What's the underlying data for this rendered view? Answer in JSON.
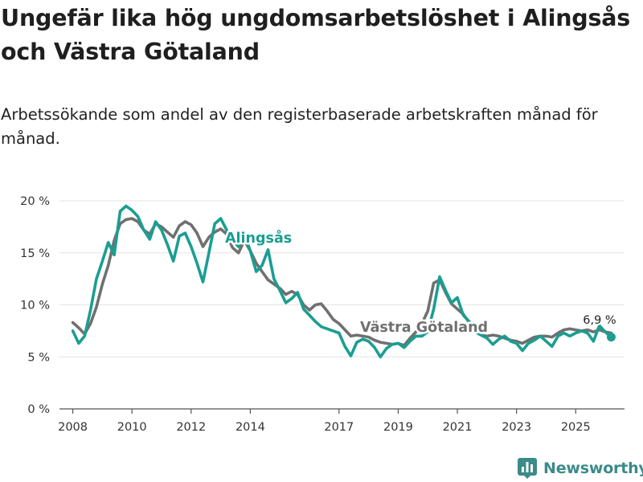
{
  "title": "Ungefär lika hög ungdomsarbetslöshet i Alingsås och Västra Götaland",
  "subtitle": "Arbetssökande som andel av den registerbaserade arbetskraften månad för månad.",
  "brand": {
    "name": "Newsworthy",
    "logo_icon": "bar-chart-icon"
  },
  "chart_data": {
    "type": "line",
    "title": "Ungefär lika hög ungdomsarbetslöshet i Alingsås och Västra Götaland",
    "xlabel": "",
    "ylabel": "",
    "xlim": [
      2007.55,
      2026.65
    ],
    "ylim": [
      0,
      20
    ],
    "grid": true,
    "y_ticks": [
      0,
      5,
      10,
      15,
      20
    ],
    "y_tick_labels": [
      "0 %",
      "5 %",
      "10 %",
      "15 %",
      "20 %"
    ],
    "x_ticks": [
      2008,
      2010,
      2012,
      2014,
      2017,
      2019,
      2021,
      2023,
      2025
    ],
    "x_tick_labels": [
      "2008",
      "2010",
      "2012",
      "2014",
      "2017",
      "2019",
      "2021",
      "2023",
      "2025"
    ],
    "end_label": "6,9 %",
    "series": [
      {
        "name": "Västra Götaland",
        "color": "#707070",
        "x": [
          2008.0,
          2008.2,
          2008.4,
          2008.6,
          2008.8,
          2009.0,
          2009.2,
          2009.4,
          2009.6,
          2009.8,
          2010.0,
          2010.2,
          2010.4,
          2010.6,
          2010.8,
          2011.0,
          2011.2,
          2011.4,
          2011.6,
          2011.8,
          2012.0,
          2012.2,
          2012.4,
          2012.6,
          2012.8,
          2013.0,
          2013.2,
          2013.4,
          2013.6,
          2013.8,
          2014.0,
          2014.2,
          2014.4,
          2014.6,
          2014.8,
          2015.0,
          2015.2,
          2015.4,
          2015.6,
          2015.8,
          2016.0,
          2016.2,
          2016.4,
          2016.6,
          2016.8,
          2017.0,
          2017.2,
          2017.4,
          2017.6,
          2017.8,
          2018.0,
          2018.2,
          2018.4,
          2018.6,
          2018.8,
          2019.0,
          2019.2,
          2019.4,
          2019.6,
          2019.8,
          2020.0,
          2020.2,
          2020.4,
          2020.6,
          2020.8,
          2021.0,
          2021.2,
          2021.4,
          2021.6,
          2021.8,
          2022.0,
          2022.2,
          2022.4,
          2022.6,
          2022.8,
          2023.0,
          2023.2,
          2023.4,
          2023.6,
          2023.8,
          2024.0,
          2024.2,
          2024.4,
          2024.6,
          2024.8,
          2025.0,
          2025.2,
          2025.4,
          2025.6,
          2025.8,
          2026.0,
          2026.2
        ],
        "y": [
          8.3,
          7.8,
          7.2,
          8.2,
          9.8,
          12.0,
          13.8,
          16.2,
          17.8,
          18.2,
          18.3,
          18.0,
          17.2,
          16.8,
          17.8,
          17.5,
          17.0,
          16.5,
          17.6,
          18.0,
          17.7,
          16.9,
          15.6,
          16.5,
          17.0,
          17.3,
          16.8,
          15.5,
          15.0,
          16.2,
          15.2,
          14.0,
          13.2,
          12.4,
          12.0,
          11.6,
          11.0,
          11.3,
          11.0,
          10.0,
          9.5,
          10.0,
          10.1,
          9.4,
          8.6,
          8.2,
          7.6,
          7.0,
          7.1,
          7.0,
          6.9,
          6.6,
          6.4,
          6.3,
          6.2,
          6.3,
          6.1,
          6.8,
          7.4,
          8.2,
          9.4,
          12.1,
          12.4,
          11.2,
          10.1,
          9.6,
          9.1,
          8.3,
          7.6,
          7.1,
          7.0,
          7.1,
          7.0,
          6.8,
          6.6,
          6.5,
          6.3,
          6.6,
          6.9,
          7.0,
          7.0,
          6.9,
          7.3,
          7.6,
          7.7,
          7.6,
          7.5,
          7.6,
          7.4,
          7.6,
          7.4,
          7.3
        ]
      },
      {
        "name": "Alingsås",
        "color": "#1a9e92",
        "x": [
          2008.0,
          2008.2,
          2008.4,
          2008.6,
          2008.8,
          2009.0,
          2009.2,
          2009.4,
          2009.6,
          2009.8,
          2010.0,
          2010.2,
          2010.4,
          2010.6,
          2010.8,
          2011.0,
          2011.2,
          2011.4,
          2011.6,
          2011.8,
          2012.0,
          2012.2,
          2012.4,
          2012.6,
          2012.8,
          2013.0,
          2013.2,
          2013.4,
          2013.6,
          2013.8,
          2014.0,
          2014.2,
          2014.4,
          2014.6,
          2014.8,
          2015.0,
          2015.2,
          2015.4,
          2015.6,
          2015.8,
          2016.0,
          2016.2,
          2016.4,
          2016.6,
          2016.8,
          2017.0,
          2017.2,
          2017.4,
          2017.6,
          2017.8,
          2018.0,
          2018.2,
          2018.4,
          2018.6,
          2018.8,
          2019.0,
          2019.2,
          2019.4,
          2019.6,
          2019.8,
          2020.0,
          2020.2,
          2020.4,
          2020.6,
          2020.8,
          2021.0,
          2021.2,
          2021.4,
          2021.6,
          2021.8,
          2022.0,
          2022.2,
          2022.4,
          2022.6,
          2022.8,
          2023.0,
          2023.2,
          2023.4,
          2023.6,
          2023.8,
          2024.0,
          2024.2,
          2024.4,
          2024.6,
          2024.8,
          2025.0,
          2025.2,
          2025.4,
          2025.6,
          2025.8,
          2026.0,
          2026.2
        ],
        "y": [
          7.5,
          6.3,
          7.0,
          9.5,
          12.5,
          14.2,
          16.0,
          14.8,
          19.0,
          19.5,
          19.1,
          18.5,
          17.2,
          16.3,
          18.0,
          17.2,
          15.8,
          14.2,
          16.6,
          16.9,
          15.6,
          14.0,
          12.2,
          15.0,
          17.8,
          18.3,
          17.2,
          16.2,
          15.6,
          16.8,
          15.2,
          13.2,
          13.8,
          15.3,
          12.5,
          11.4,
          10.2,
          10.6,
          11.2,
          9.6,
          9.0,
          8.4,
          7.9,
          7.7,
          7.5,
          7.3,
          6.0,
          5.1,
          6.4,
          6.7,
          6.5,
          5.9,
          5.0,
          5.8,
          6.2,
          6.3,
          5.9,
          6.5,
          7.0,
          7.0,
          7.4,
          9.6,
          12.7,
          11.4,
          10.2,
          10.7,
          9.0,
          8.4,
          7.4,
          7.1,
          6.8,
          6.2,
          6.7,
          7.0,
          6.5,
          6.3,
          5.6,
          6.3,
          6.6,
          7.0,
          6.5,
          6.0,
          7.0,
          7.3,
          7.0,
          7.3,
          7.5,
          7.3,
          6.5,
          8.0,
          7.4,
          6.9
        ]
      }
    ]
  }
}
